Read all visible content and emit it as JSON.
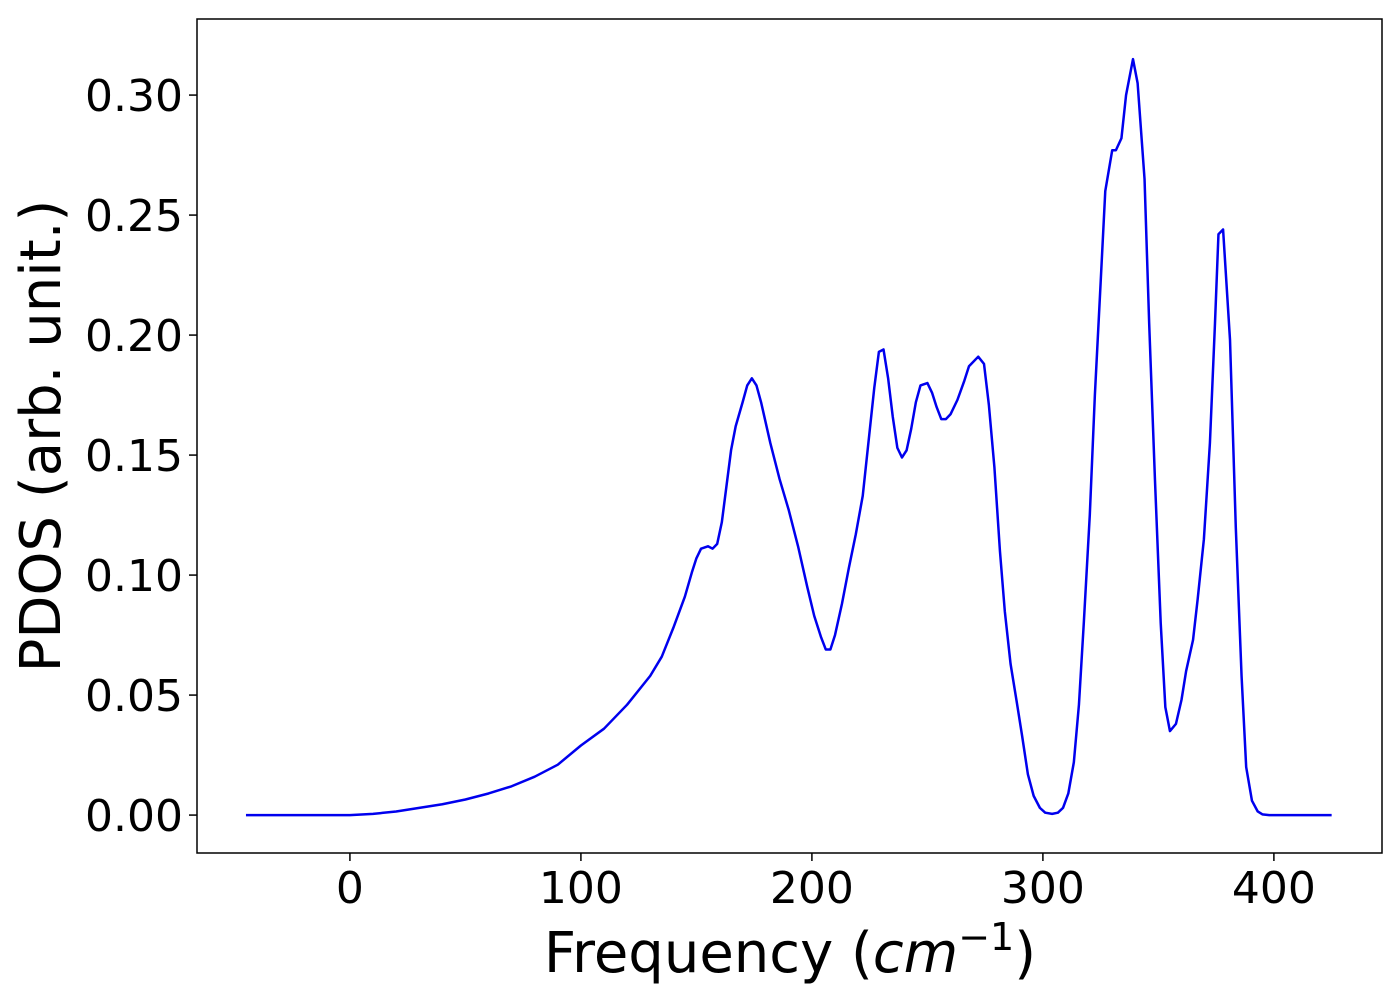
{
  "chart_data": {
    "type": "line",
    "xlabel": [
      "Frequency (",
      "cm",
      "−1",
      ")"
    ],
    "ylabel": "PDOS (arb. unit.)",
    "xlim": [
      -66.2,
      446.8
    ],
    "ylim": [
      -0.0158,
      0.3317
    ],
    "xticks": [
      0,
      100,
      200,
      300,
      400
    ],
    "yticks": [
      {
        "value": 0,
        "label": "0.00"
      },
      {
        "value": 0.05,
        "label": "0.05"
      },
      {
        "value": 0.1,
        "label": "0.10"
      },
      {
        "value": 0.15,
        "label": "0.15"
      },
      {
        "value": 0.2,
        "label": "0.20"
      },
      {
        "value": 0.25,
        "label": "0.25"
      },
      {
        "value": 0.3,
        "label": "0.30"
      }
    ],
    "grid": false,
    "series": [
      {
        "color": "#0000ee",
        "x": [
          -45,
          -20,
          0,
          10,
          20,
          30,
          40,
          50,
          60,
          70,
          80,
          90,
          100,
          110,
          120,
          130,
          135,
          140,
          145,
          148,
          150,
          152,
          155,
          157,
          159,
          161,
          163,
          165,
          167,
          170,
          172,
          174,
          176,
          178,
          182,
          186,
          190,
          194,
          198,
          201,
          204,
          206,
          208,
          210,
          213,
          216,
          219,
          222,
          225,
          227,
          229,
          231,
          233,
          235,
          237,
          239,
          241,
          243,
          245,
          247,
          250,
          252,
          254,
          256,
          258,
          260,
          263,
          266,
          268,
          272,
          274.5,
          276.6,
          279,
          281.4,
          283.5,
          286,
          288.7,
          291,
          293.5,
          296,
          298.7,
          301,
          304,
          306.5,
          308.7,
          311,
          313.4,
          315.6,
          317.7,
          320.3,
          322.5,
          325,
          327,
          330,
          331.6,
          334,
          336,
          339,
          341,
          344,
          346,
          348.5,
          351,
          353,
          355,
          357.6,
          360,
          362,
          365,
          367,
          369.7,
          372.3,
          374.5,
          376,
          378,
          381,
          383.5,
          386,
          388,
          390.5,
          393,
          395,
          398,
          425
        ],
        "values": [
          0,
          0,
          0,
          0.0005,
          0.0015,
          0.003,
          0.0045,
          0.0065,
          0.009,
          0.012,
          0.016,
          0.021,
          0.029,
          0.036,
          0.046,
          0.058,
          0.066,
          0.078,
          0.091,
          0.101,
          0.107,
          0.111,
          0.112,
          0.111,
          0.113,
          0.122,
          0.137,
          0.152,
          0.162,
          0.172,
          0.179,
          0.182,
          0.179,
          0.172,
          0.155,
          0.14,
          0.127,
          0.112,
          0.095,
          0.083,
          0.074,
          0.069,
          0.069,
          0.075,
          0.088,
          0.103,
          0.117,
          0.133,
          0.16,
          0.178,
          0.193,
          0.194,
          0.182,
          0.166,
          0.153,
          0.149,
          0.152,
          0.161,
          0.172,
          0.179,
          0.18,
          0.176,
          0.17,
          0.165,
          0.165,
          0.167,
          0.173,
          0.181,
          0.187,
          0.191,
          0.188,
          0.171,
          0.145,
          0.11,
          0.085,
          0.063,
          0.047,
          0.033,
          0.017,
          0.008,
          0.003,
          0.001,
          0.0005,
          0.001,
          0.003,
          0.009,
          0.022,
          0.046,
          0.08,
          0.125,
          0.175,
          0.222,
          0.26,
          0.277,
          0.277,
          0.282,
          0.3,
          0.315,
          0.305,
          0.265,
          0.205,
          0.14,
          0.08,
          0.045,
          0.035,
          0.038,
          0.048,
          0.06,
          0.073,
          0.09,
          0.115,
          0.155,
          0.205,
          0.242,
          0.244,
          0.198,
          0.12,
          0.058,
          0.02,
          0.006,
          0.0015,
          0.0003,
          0,
          0
        ]
      }
    ]
  }
}
